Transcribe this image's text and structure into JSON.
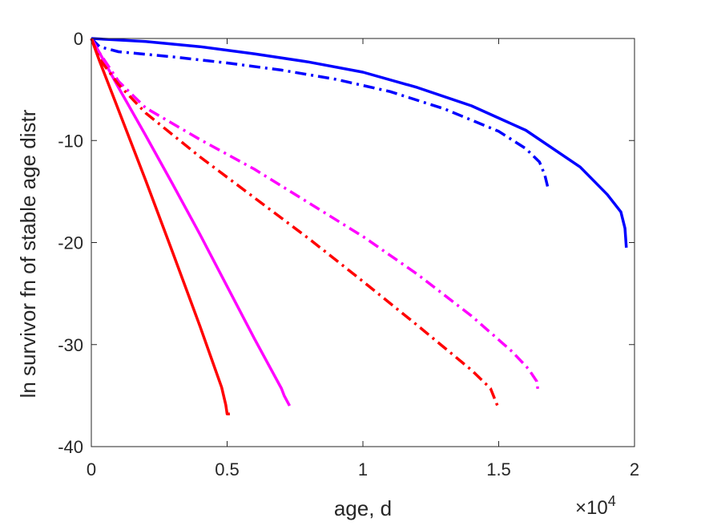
{
  "chart_data": {
    "type": "line",
    "xlabel": "age, d",
    "ylabel": "ln survivor fn of stable age distr",
    "xlim": [
      0,
      20000
    ],
    "ylim": [
      -40,
      0
    ],
    "x_exponent_label": "×10",
    "x_exponent_power": "4",
    "xticks": [
      0,
      5000,
      10000,
      15000,
      20000
    ],
    "xtick_labels": [
      "0",
      "0.5",
      "1",
      "1.5",
      "2"
    ],
    "yticks": [
      0,
      -10,
      -20,
      -30,
      -40
    ],
    "ytick_labels": [
      "0",
      "-10",
      "-20",
      "-30",
      "-40"
    ],
    "grid": false,
    "legend": "none",
    "series": [
      {
        "color": "#0000ff",
        "style": "solid",
        "x": [
          0,
          2000,
          4000,
          6000,
          8000,
          10000,
          12000,
          14000,
          16000,
          18000,
          19000,
          19500,
          19650,
          19700
        ],
        "y": [
          0,
          -0.3,
          -0.8,
          -1.5,
          -2.3,
          -3.3,
          -4.8,
          -6.6,
          -9.0,
          -12.6,
          -15.3,
          -17.0,
          -18.6,
          -20.5
        ]
      },
      {
        "color": "#0000ff",
        "style": "dashdot",
        "x": [
          0,
          300,
          1000,
          3000,
          5000,
          7000,
          9000,
          11000,
          13000,
          15000,
          16000,
          16500,
          16700,
          16800
        ],
        "y": [
          0,
          -0.8,
          -1.3,
          -1.8,
          -2.4,
          -3.1,
          -4.0,
          -5.2,
          -6.9,
          -9.1,
          -10.8,
          -12.1,
          -13.4,
          -14.5
        ]
      },
      {
        "color": "#ff00ff",
        "style": "solid",
        "x": [
          0,
          300,
          1000,
          2000,
          3000,
          4000,
          5000,
          6000,
          7000,
          7100,
          7300
        ],
        "y": [
          0,
          -1.4,
          -4.8,
          -9.5,
          -14.3,
          -19.2,
          -24.3,
          -29.4,
          -34.3,
          -35.0,
          -36.0
        ]
      },
      {
        "color": "#ff00ff",
        "style": "dashdot",
        "x": [
          0,
          300,
          1000,
          2000,
          4000,
          6000,
          8000,
          10000,
          12000,
          14000,
          15500,
          16100,
          16400,
          16450
        ],
        "y": [
          0,
          -1.4,
          -4.2,
          -6.8,
          -9.9,
          -12.8,
          -16.1,
          -19.4,
          -23.1,
          -27.2,
          -30.7,
          -32.4,
          -33.6,
          -34.6
        ]
      },
      {
        "color": "#ff0000",
        "style": "solid",
        "x": [
          0,
          300,
          1000,
          2000,
          3000,
          4000,
          4800,
          4950,
          5000,
          5100
        ],
        "y": [
          0,
          -2.2,
          -7.0,
          -13.9,
          -21.0,
          -28.2,
          -34.2,
          -35.9,
          -36.8,
          -36.8
        ]
      },
      {
        "color": "#ff0000",
        "style": "dashdot",
        "x": [
          0,
          300,
          1000,
          2000,
          4000,
          6000,
          8000,
          10000,
          12000,
          14000,
          14700,
          15000
        ],
        "y": [
          0,
          -2.0,
          -4.5,
          -7.3,
          -11.6,
          -15.6,
          -19.6,
          -23.8,
          -28.1,
          -32.5,
          -34.3,
          -36.3
        ]
      }
    ]
  }
}
